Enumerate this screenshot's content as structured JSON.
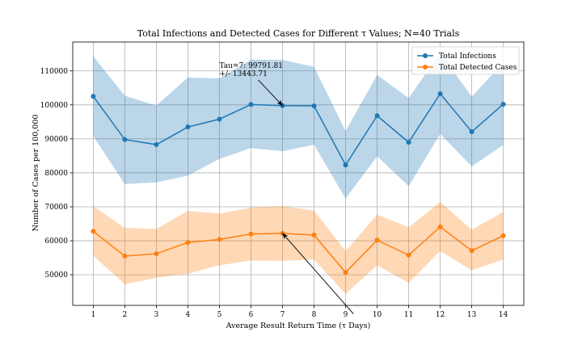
{
  "chart_data": {
    "type": "line",
    "title": "Total Infections and Detected Cases for Different τ Values; N=40 Trials",
    "xlabel": "Average Result Return Time (τ Days)",
    "ylabel": "Number of Cases per 100,000",
    "x": [
      1,
      2,
      3,
      4,
      5,
      6,
      7,
      8,
      9,
      10,
      11,
      12,
      13,
      14
    ],
    "x_tick_labels": [
      "1",
      "2",
      "3",
      "4",
      "5",
      "6",
      "7",
      "8",
      "9",
      "10",
      "11",
      "12",
      "13",
      "14"
    ],
    "y_ticks": [
      50000,
      60000,
      70000,
      80000,
      90000,
      100000,
      110000
    ],
    "y_tick_labels": [
      "50000",
      "60000",
      "70000",
      "80000",
      "90000",
      "100000",
      "110000"
    ],
    "xlim": [
      0.35,
      14.65
    ],
    "ylim": [
      41000,
      118500
    ],
    "grid": true,
    "legend_position": "top-right",
    "series": [
      {
        "name": "Total Infections",
        "color": "#1f77b4",
        "band_color": "#1f77b4",
        "values": [
          102500,
          89800,
          88300,
          93500,
          95800,
          100100,
          99791.81,
          99700,
          82300,
          96800,
          89000,
          103300,
          92100,
          100200
        ],
        "upper": [
          114300,
          102700,
          99800,
          108000,
          107800,
          113300,
          113235.52,
          111200,
          92300,
          108800,
          102000,
          115300,
          102400,
          112500
        ],
        "lower": [
          90800,
          76700,
          77200,
          79200,
          84100,
          87300,
          86348.1,
          88300,
          72400,
          84900,
          76100,
          91500,
          81900,
          88200
        ]
      },
      {
        "name": "Total Detected Cases",
        "color": "#ff7f0e",
        "band_color": "#ff7f0e",
        "values": [
          62800,
          55500,
          56200,
          59500,
          60400,
          62000,
          62200,
          61700,
          50700,
          60200,
          55800,
          64100,
          57100,
          61500
        ],
        "upper": [
          70200,
          63800,
          63500,
          68800,
          68000,
          69800,
          70200,
          68900,
          57000,
          67700,
          64000,
          71400,
          63300,
          68500
        ],
        "lower": [
          55600,
          47200,
          49100,
          50300,
          52800,
          54200,
          54100,
          54500,
          44400,
          52800,
          47600,
          57000,
          51300,
          54500
        ]
      }
    ],
    "annotations": [
      {
        "text_lines": [
          "Tau=7: 99791.81",
          "+/- 13443.71"
        ],
        "target": {
          "x": 7,
          "y": 99791.81
        },
        "text_at": {
          "x": 5,
          "y": 110900
        }
      },
      {
        "text_lines": [],
        "target": {
          "x": 7,
          "y": 62200
        },
        "text_at": {
          "x": 9.25,
          "y": 38500
        }
      }
    ]
  }
}
